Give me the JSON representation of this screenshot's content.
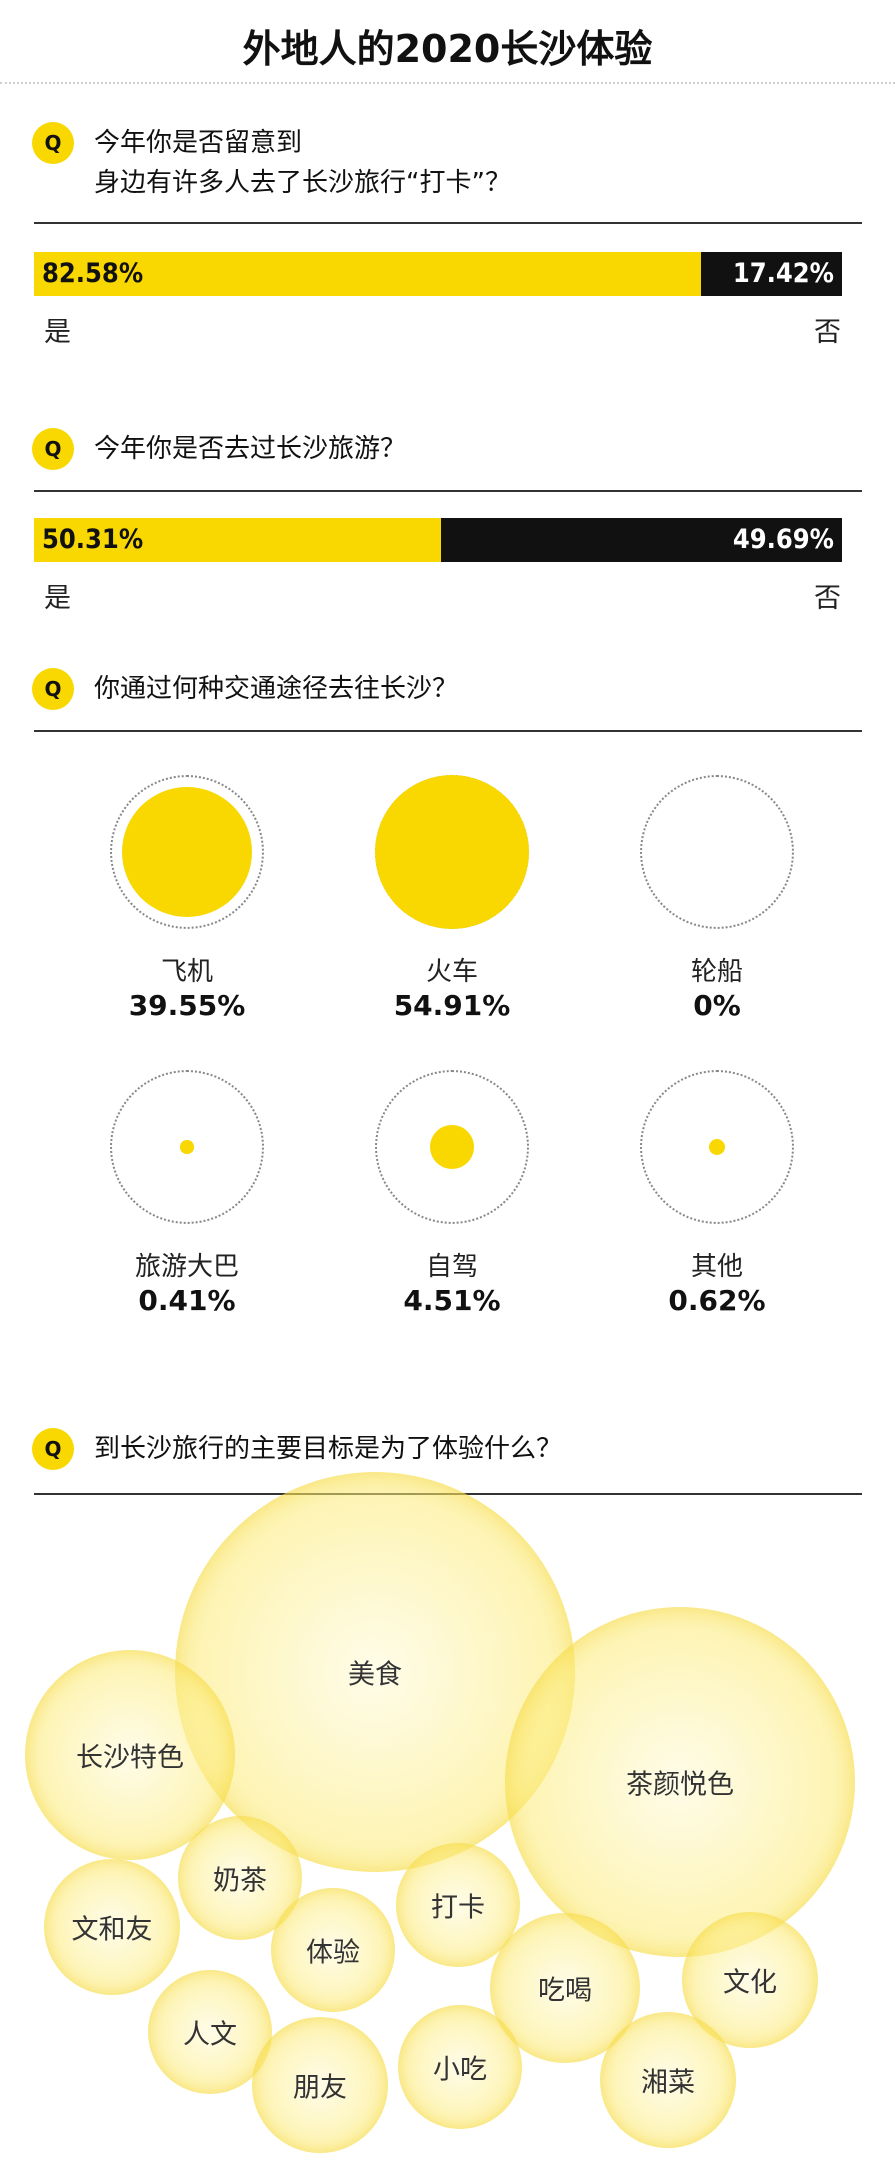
{
  "title": "外地人的2020长沙体验",
  "badge": "Q",
  "q1": {
    "line1": "今年你是否留意到",
    "line2": "身边有许多人去了长沙旅行“打卡”？",
    "yes_pct": "82.58%",
    "no_pct": "17.42%",
    "yes_label": "是",
    "no_label": "否"
  },
  "q2": {
    "text": "今年你是否去过长沙旅游？",
    "yes_pct": "50.31%",
    "no_pct": "49.69%",
    "yes_label": "是",
    "no_label": "否"
  },
  "q3": {
    "text": "你通过何种交通途径去往长沙？",
    "items": [
      {
        "name": "飞机",
        "pct": "39.55%"
      },
      {
        "name": "火车",
        "pct": "54.91%"
      },
      {
        "name": "轮船",
        "pct": "0%"
      },
      {
        "name": "旅游大巴",
        "pct": "0.41%"
      },
      {
        "name": "自驾",
        "pct": "4.51%"
      },
      {
        "name": "其他",
        "pct": "0.62%"
      }
    ]
  },
  "q4": {
    "text": "到长沙旅行的主要目标是为了体验什么？",
    "bubbles": [
      "美食",
      "茶颜悦色",
      "长沙特色",
      "奶茶",
      "文和友",
      "打卡",
      "体验",
      "吃喝",
      "文化",
      "人文",
      "朋友",
      "小吃",
      "湘菜"
    ]
  },
  "colors": {
    "accent": "#f8d800",
    "dark": "#111111"
  },
  "chart_data": [
    {
      "type": "bar",
      "title": "今年你是否留意到身边有许多人去了长沙旅行“打卡”？",
      "categories": [
        "是",
        "否"
      ],
      "values": [
        82.58,
        17.42
      ],
      "unit": "%"
    },
    {
      "type": "bar",
      "title": "今年你是否去过长沙旅游？",
      "categories": [
        "是",
        "否"
      ],
      "values": [
        50.31,
        49.69
      ],
      "unit": "%"
    },
    {
      "type": "scatter",
      "title": "你通过何种交通途径去往长沙？",
      "categories": [
        "飞机",
        "火车",
        "轮船",
        "旅游大巴",
        "自驾",
        "其他"
      ],
      "values": [
        39.55,
        54.91,
        0,
        0.41,
        4.51,
        0.62
      ],
      "unit": "%"
    },
    {
      "type": "scatter",
      "title": "到长沙旅行的主要目标是为了体验什么？",
      "categories": [
        "美食",
        "茶颜悦色",
        "长沙特色",
        "奶茶",
        "文和友",
        "打卡",
        "体验",
        "吃喝",
        "文化",
        "人文",
        "朋友",
        "小吃",
        "湘菜"
      ]
    }
  ]
}
